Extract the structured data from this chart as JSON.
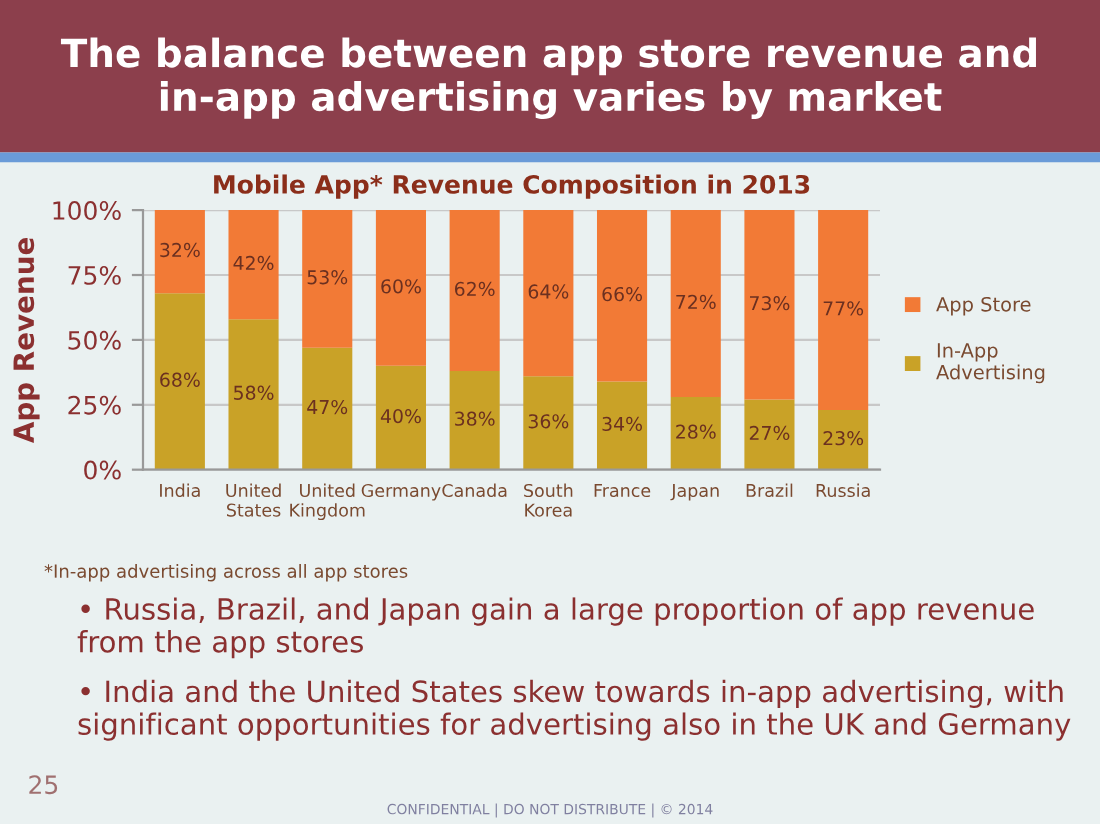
{
  "chart_data": {
    "type": "bar",
    "stacked": true,
    "title": "The balance between app store revenue and in-app advertising varies by market",
    "subtitle": "Mobile App* Revenue Composition in 2013",
    "ylabel": "App Revenue",
    "categories": [
      "India",
      "United States",
      "United Kingdom",
      "Germany",
      "Canada",
      "South Korea",
      "France",
      "Japan",
      "Brazil",
      "Russia"
    ],
    "series": [
      {
        "name": "In-App Advertising",
        "color": "#c9a227",
        "values": [
          68,
          58,
          47,
          40,
          38,
          36,
          34,
          28,
          27,
          23
        ],
        "value_labels": [
          "68%",
          "58%",
          "47%",
          "40%",
          "38%",
          "36%",
          "34%",
          "28%",
          "27%",
          "23%"
        ]
      },
      {
        "name": "App Store",
        "color": "#f27a36",
        "values": [
          32,
          42,
          53,
          60,
          62,
          64,
          66,
          72,
          73,
          77
        ],
        "value_labels": [
          "32%",
          "42%",
          "53%",
          "60%",
          "62%",
          "64%",
          "66%",
          "72%",
          "73%",
          "77%"
        ]
      }
    ],
    "ylim": [
      0,
      100
    ],
    "yticks": [
      {
        "value": 0,
        "label": "0%"
      },
      {
        "value": 25,
        "label": "25%"
      },
      {
        "value": 50,
        "label": "50%"
      },
      {
        "value": 75,
        "label": "75%"
      },
      {
        "value": 100,
        "label": "100%"
      }
    ],
    "grid": "y",
    "legend": "right",
    "annotations": [
      "*In-app advertising across all app stores",
      "• Russia, Brazil, and Japan gain a large proportion of app revenue from the app stores",
      "• India and the United States skew towards in-app advertising, with significant opportunities for advertising also in the UK and Germany",
      "25",
      "CONFIDENTIAL | DO NOT DISTRIBUTE | © 2014"
    ]
  }
}
